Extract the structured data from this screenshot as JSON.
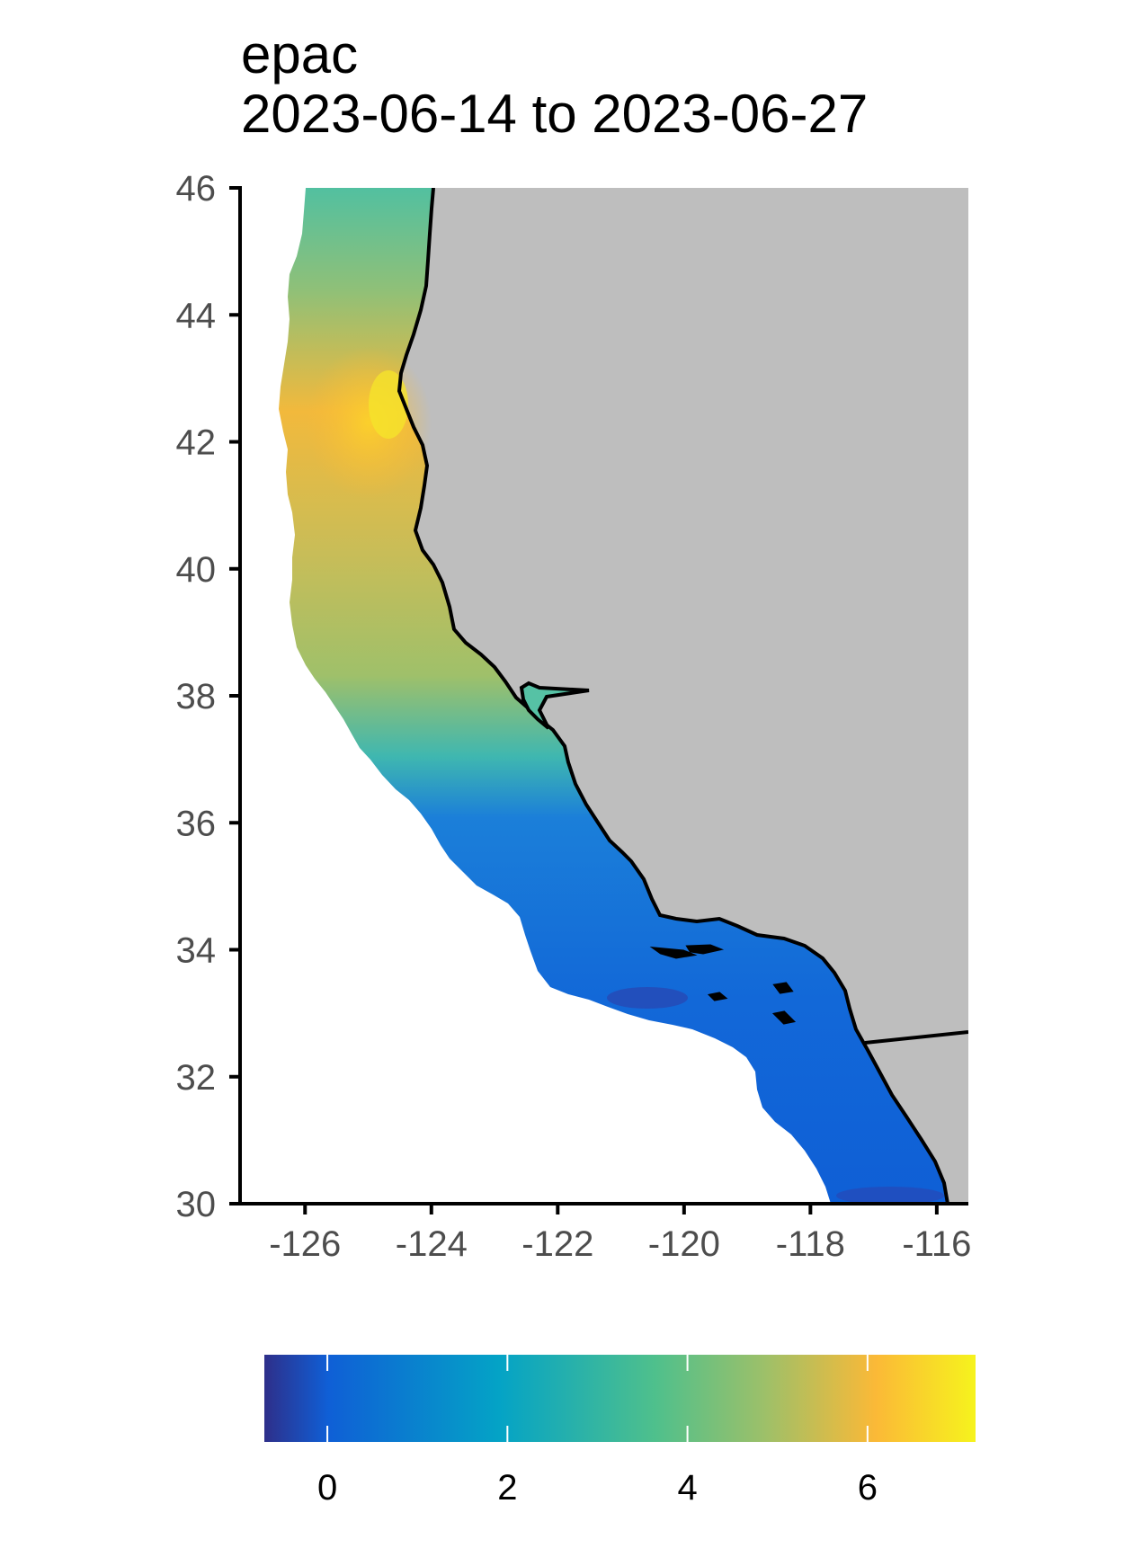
{
  "title": {
    "line1": "epac",
    "line2": "2023-06-14 to 2023-06-27"
  },
  "axes": {
    "x_ticks": [
      "-126",
      "-124",
      "-122",
      "-120",
      "-118",
      "-116"
    ],
    "y_ticks": [
      "46",
      "44",
      "42",
      "40",
      "38",
      "36",
      "34",
      "32",
      "30"
    ],
    "xlim": [
      -127,
      -115.5
    ],
    "ylim": [
      30,
      46
    ]
  },
  "colorbar": {
    "ticks": [
      "0",
      "2",
      "4",
      "6"
    ],
    "range": [
      -0.7,
      7.2
    ],
    "colors": [
      "#2e2f8a",
      "#0f5fd6",
      "#04a3c6",
      "#4fc08c",
      "#9bc06a",
      "#fbb937",
      "#f6f31d"
    ]
  },
  "map": {
    "land_color": "#bebebe",
    "ocean_field": "coastal band, high values (5-6.5) near 41-43N, low values (0.5-1.5) south of 36N"
  }
}
